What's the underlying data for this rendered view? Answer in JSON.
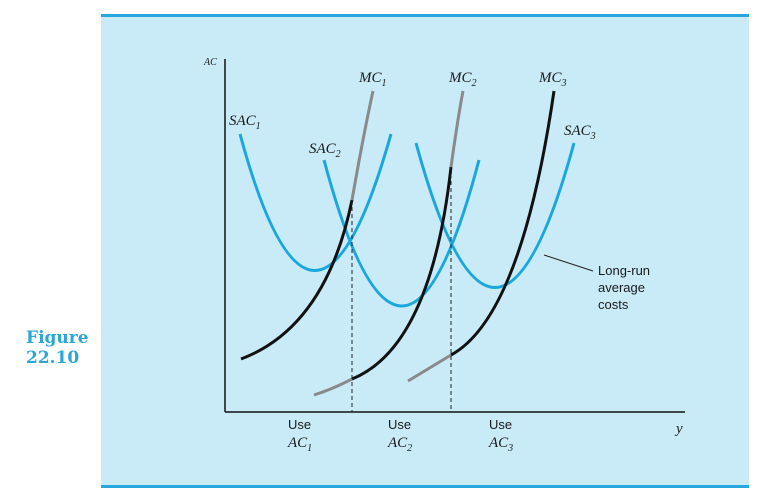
{
  "figure": {
    "label": "Figure",
    "number": "22.10"
  },
  "axes": {
    "y_label": "AC",
    "x_label": "y"
  },
  "curves": {
    "sac1": "SAC",
    "sac1_sub": "1",
    "sac2": "SAC",
    "sac2_sub": "2",
    "sac3": "SAC",
    "sac3_sub": "3",
    "mc1": "MC",
    "mc1_sub": "1",
    "mc2": "MC",
    "mc2_sub": "2",
    "mc3": "MC",
    "mc3_sub": "3"
  },
  "annotation": {
    "line1": "Long-run",
    "line2": "average",
    "line3": "costs"
  },
  "regions": [
    {
      "use": "Use",
      "ac": "AC",
      "sub": "1"
    },
    {
      "use": "Use",
      "ac": "AC",
      "sub": "2"
    },
    {
      "use": "Use",
      "ac": "AC",
      "sub": "3"
    }
  ],
  "colors": {
    "accent": "#27a8dc",
    "panel": "#c9ebf8",
    "sac": "#1aa7de",
    "mc": "#111111",
    "mc_upper": "#8a8a8a"
  }
}
